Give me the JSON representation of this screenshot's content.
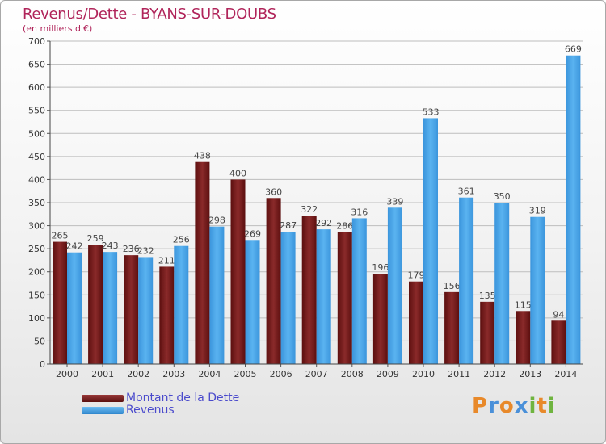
{
  "chart_data": {
    "type": "bar",
    "title": "Revenus/Dette - BYANS-SUR-DOUBS",
    "subtitle": "(en milliers d'€)",
    "categories": [
      "2000",
      "2001",
      "2002",
      "2003",
      "2004",
      "2005",
      "2006",
      "2007",
      "2008",
      "2009",
      "2010",
      "2011",
      "2012",
      "2013",
      "2014"
    ],
    "series": [
      {
        "name": "Montant de la Dette",
        "color": "#7a1c1c",
        "values": [
          265,
          259,
          236,
          211,
          438,
          400,
          360,
          322,
          286,
          196,
          179,
          156,
          135,
          115,
          94
        ]
      },
      {
        "name": "Revenus",
        "color": "#4aa3e6",
        "values": [
          242,
          243,
          232,
          256,
          298,
          269,
          287,
          292,
          316,
          339,
          533,
          361,
          350,
          319,
          669
        ]
      }
    ],
    "ylim": [
      0,
      700
    ],
    "yticks": [
      0,
      50,
      100,
      150,
      200,
      250,
      300,
      350,
      400,
      450,
      500,
      550,
      600,
      650,
      700
    ],
    "grid": true,
    "legend_position": "bottom-left"
  },
  "logo": {
    "letters": [
      "P",
      "r",
      "o",
      "x",
      "i",
      "t",
      "i"
    ],
    "colors": [
      "#e8892a",
      "#4a90d9",
      "#e8892a",
      "#4a90d9",
      "#6fb43f",
      "#e8892a",
      "#6fb43f"
    ]
  }
}
